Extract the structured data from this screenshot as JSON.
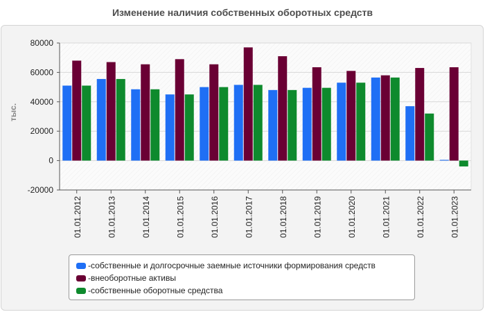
{
  "title": "Изменение наличия собственных оборотных средств",
  "legend_prefix": "- ",
  "chart_data": {
    "type": "bar",
    "title": "Изменение наличия собственных оборотных средств",
    "xlabel": "",
    "ylabel": "тыс.",
    "ylim": [
      -20000,
      80000
    ],
    "yticks": [
      -20000,
      0,
      20000,
      40000,
      60000,
      80000
    ],
    "grid": true,
    "legend_position": "bottom",
    "categories": [
      "01.01.2012",
      "01.01.2013",
      "01.01.2014",
      "01.01.2015",
      "01.01.2016",
      "01.01.2017",
      "01.01.2018",
      "01.01.2019",
      "01.01.2020",
      "01.01.2021",
      "01.01.2022",
      "01.01.2023"
    ],
    "series": [
      {
        "name": "собственные и долгосрочные заемные источники формирования средств",
        "color": "#1f6ff5",
        "values": [
          51000,
          55500,
          48500,
          45000,
          50000,
          51500,
          48000,
          49500,
          53000,
          56500,
          37000,
          500
        ]
      },
      {
        "name": "внеоборотные активы",
        "color": "#6a0034",
        "values": [
          68000,
          67000,
          65500,
          69000,
          65500,
          77000,
          71000,
          63500,
          61000,
          58000,
          63000,
          63500
        ]
      },
      {
        "name": "собственные оборотные средства",
        "color": "#0e8a2d",
        "values": [
          51000,
          55500,
          48500,
          45000,
          50000,
          51500,
          48000,
          49500,
          53000,
          56500,
          32000,
          -4000
        ]
      }
    ]
  }
}
